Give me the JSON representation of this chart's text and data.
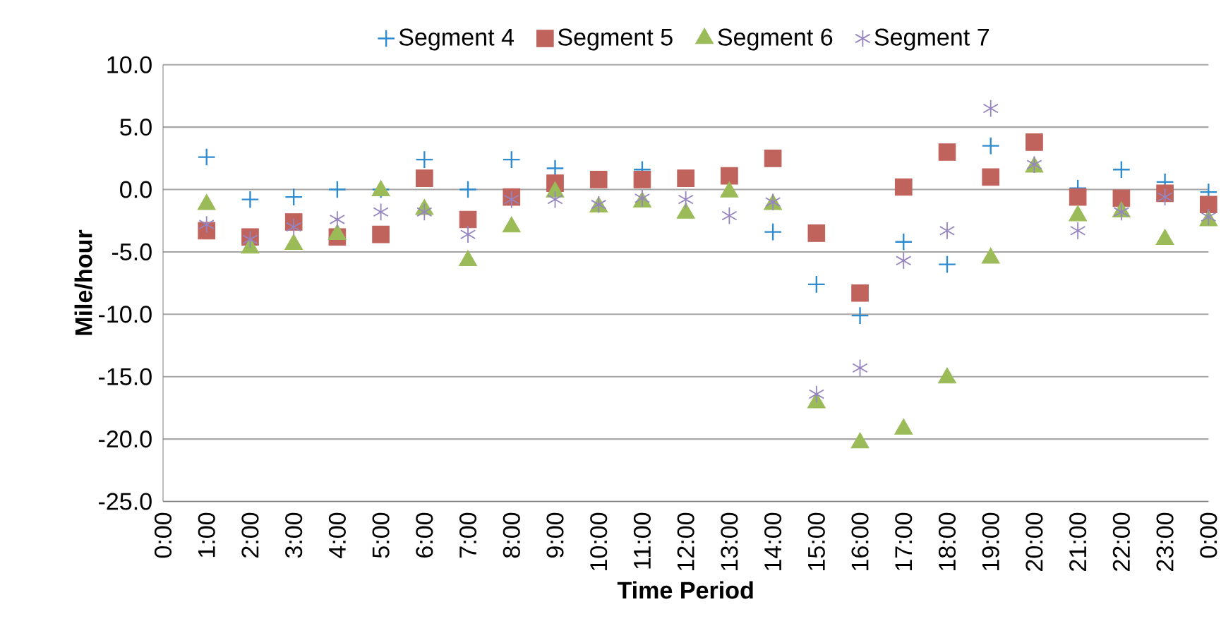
{
  "chart_data": {
    "type": "scatter",
    "xlabel": "Time Period",
    "ylabel": "Mile/hour",
    "categories": [
      "0:00",
      "1:00",
      "2:00",
      "3:00",
      "4:00",
      "5:00",
      "6:00",
      "7:00",
      "8:00",
      "9:00",
      "10:00",
      "11:00",
      "12:00",
      "13:00",
      "14:00",
      "15:00",
      "16:00",
      "17:00",
      "18:00",
      "19:00",
      "20:00",
      "21:00",
      "22:00",
      "23:00",
      "0:00"
    ],
    "series": [
      {
        "name": "Segment 4",
        "color": "#2e8bd0",
        "marker": "cross",
        "values": [
          null,
          2.6,
          -0.8,
          -0.6,
          0.0,
          0.0,
          2.4,
          0.0,
          2.4,
          1.7,
          null,
          1.6,
          null,
          null,
          -3.4,
          -7.6,
          -10.1,
          -4.2,
          -6.0,
          3.5,
          null,
          0.1,
          1.6,
          0.6,
          -0.2
        ]
      },
      {
        "name": "Segment 5",
        "color": "#c0635c",
        "marker": "square",
        "values": [
          null,
          -3.3,
          -3.8,
          -2.6,
          -3.8,
          -3.6,
          0.9,
          -2.4,
          -0.6,
          0.5,
          0.8,
          0.8,
          0.9,
          1.1,
          2.5,
          -3.5,
          -8.3,
          0.2,
          3.0,
          1.0,
          3.8,
          -0.6,
          -0.7,
          -0.3,
          -1.2
        ]
      },
      {
        "name": "Segment 6",
        "color": "#9bbb59",
        "marker": "triangle",
        "values": [
          null,
          -1.2,
          -4.7,
          -4.4,
          -3.6,
          -0.1,
          -1.6,
          -5.7,
          -3.0,
          -0.2,
          -1.4,
          -1.0,
          -1.9,
          -0.2,
          -1.2,
          -17.1,
          -20.3,
          -19.2,
          -15.1,
          -5.5,
          1.8,
          -2.1,
          -1.8,
          -4.0,
          -2.5
        ]
      },
      {
        "name": "Segment 7",
        "color": "#9685c0",
        "values": [
          null,
          -2.8,
          -4.0,
          -3.0,
          -2.4,
          -1.8,
          -1.8,
          -3.6,
          -0.8,
          -0.8,
          -1.2,
          -0.7,
          -0.8,
          -2.1,
          -1.0,
          -16.4,
          -14.3,
          -5.7,
          -3.3,
          6.5,
          2.0,
          -3.3,
          -1.8,
          -0.6,
          -2.2
        ]
      }
    ],
    "ylim": [
      -25,
      10
    ],
    "yticks": [
      {
        "value": -25,
        "label": "-25.0"
      },
      {
        "value": -20,
        "label": "-20.0"
      },
      {
        "value": -15,
        "label": "-15.0"
      },
      {
        "value": -10,
        "label": "-10.0"
      },
      {
        "value": -5,
        "label": "-5.0"
      },
      {
        "value": 0,
        "label": "0.0"
      },
      {
        "value": 5,
        "label": "5.0"
      },
      {
        "value": 10,
        "label": "10.0"
      }
    ],
    "grid": "y",
    "legend": "top"
  }
}
